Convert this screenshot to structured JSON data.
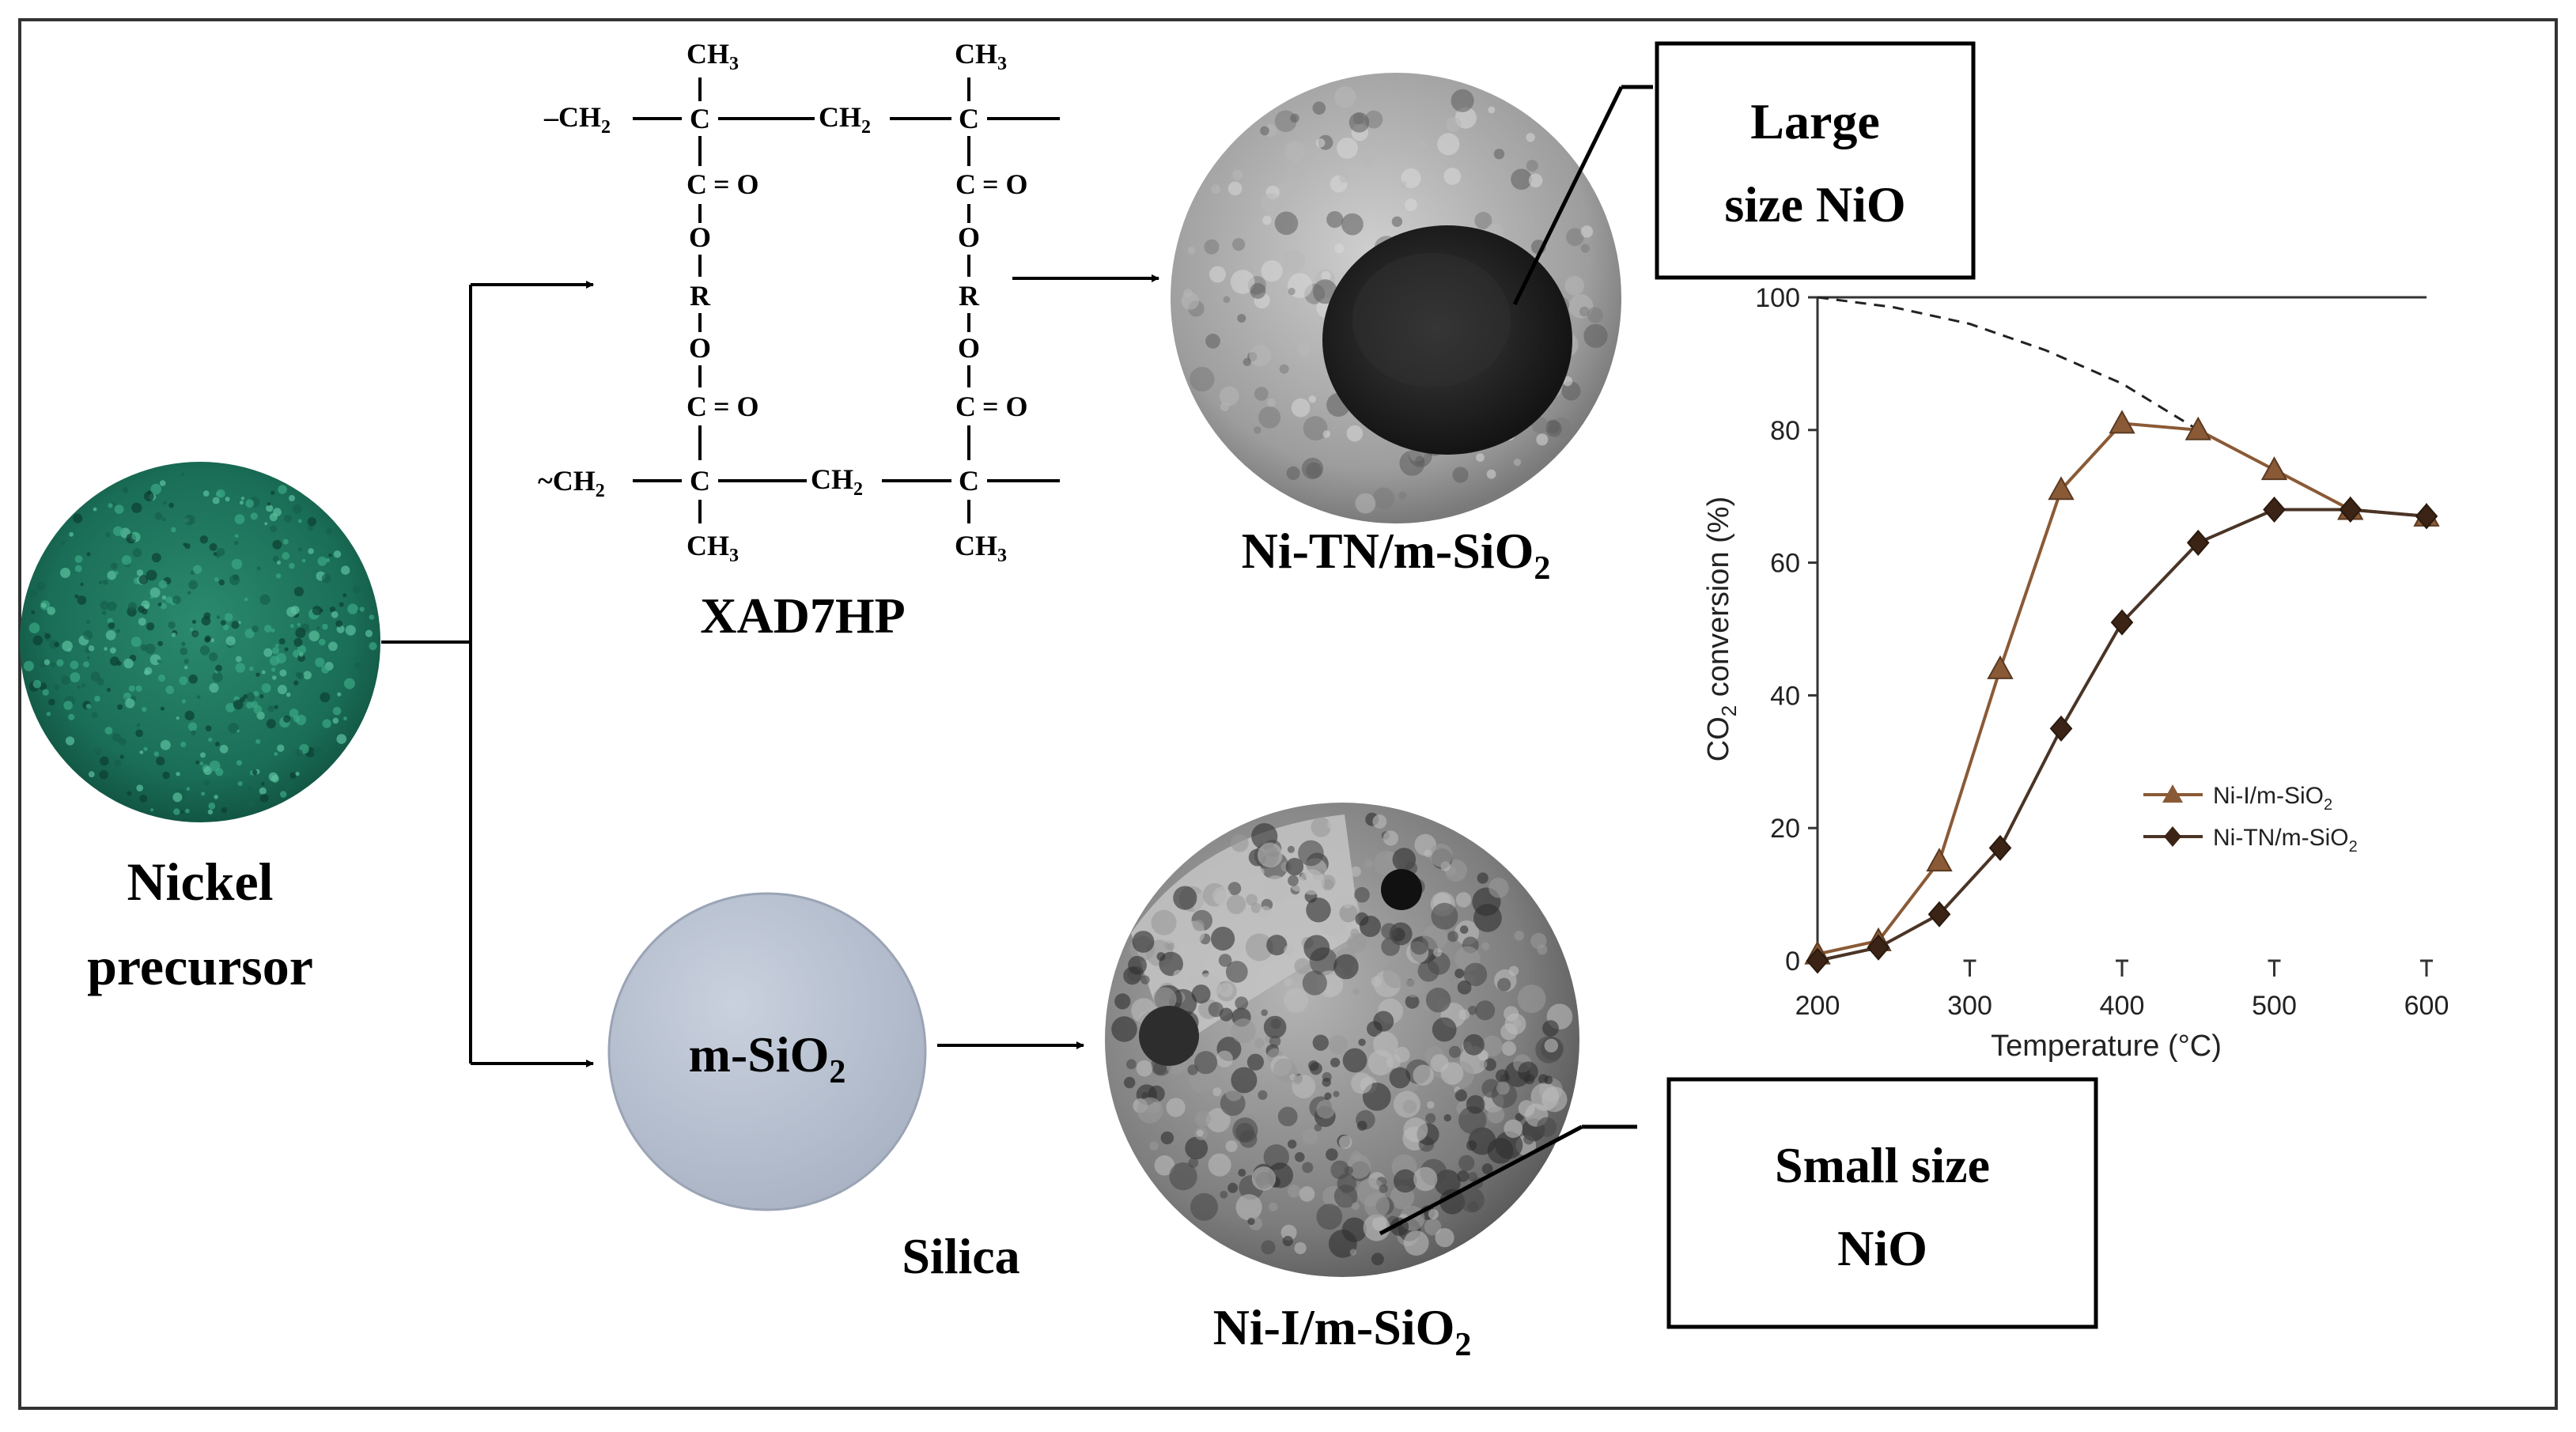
{
  "diagram": {
    "precursor_label_line1": "Nickel",
    "precursor_label_line2": "precursor",
    "resin_name": "XAD7HP",
    "silica_sphere_label": "m-SiO",
    "silica_sphere_sub": "2",
    "silica_name": "Silica",
    "tem_top_label": "Ni-TN/m-SiO",
    "tem_top_sub": "2",
    "tem_bottom_label": "Ni-I/m-SiO",
    "tem_bottom_sub": "2",
    "callout_top_line1": "Large",
    "callout_top_line2": "size NiO",
    "callout_bottom_line1": "Small size",
    "callout_bottom_line2": "NiO"
  },
  "structure": {
    "ch3": "CH",
    "ch3_sub": "3",
    "ch2": "CH",
    "ch2_sub": "2",
    "c": "C",
    "o": "O",
    "r": "R",
    "eq_o": "= O",
    "dash": "–",
    "tilde": "~"
  },
  "colors": {
    "precursor": "#1a6e57",
    "silica": "#b5bfcf",
    "series_line": "#8a5a36",
    "frame": "#333333"
  },
  "chart_data": {
    "type": "line",
    "xlabel": "Temperature (°C)",
    "ylabel_pre": "CO",
    "ylabel_sub": "2",
    "ylabel_post": " conversion (%)",
    "xlim": [
      200,
      600
    ],
    "ylim": [
      0,
      100
    ],
    "xticks": [
      200,
      300,
      400,
      500,
      600
    ],
    "yticks": [
      0,
      20,
      40,
      60,
      80,
      100
    ],
    "legend_position": "lower-right",
    "series": [
      {
        "name": "Ni-I/m-SiO",
        "name_sub": "2",
        "marker": "triangle",
        "x": [
          200,
          240,
          280,
          320,
          360,
          400,
          450,
          500,
          550,
          600
        ],
        "y": [
          1,
          3,
          15,
          44,
          71,
          81,
          80,
          74,
          68,
          67
        ]
      },
      {
        "name": "Ni-TN/m-SiO",
        "name_sub": "2",
        "marker": "diamond",
        "x": [
          200,
          240,
          280,
          320,
          360,
          400,
          450,
          500,
          550,
          600
        ],
        "y": [
          0,
          2,
          7,
          17,
          35,
          51,
          63,
          68,
          68,
          67
        ]
      }
    ],
    "equilibrium_curve": {
      "x": [
        200,
        250,
        300,
        350,
        400,
        450
      ],
      "y": [
        100,
        98.5,
        96,
        92,
        87,
        80
      ]
    }
  }
}
